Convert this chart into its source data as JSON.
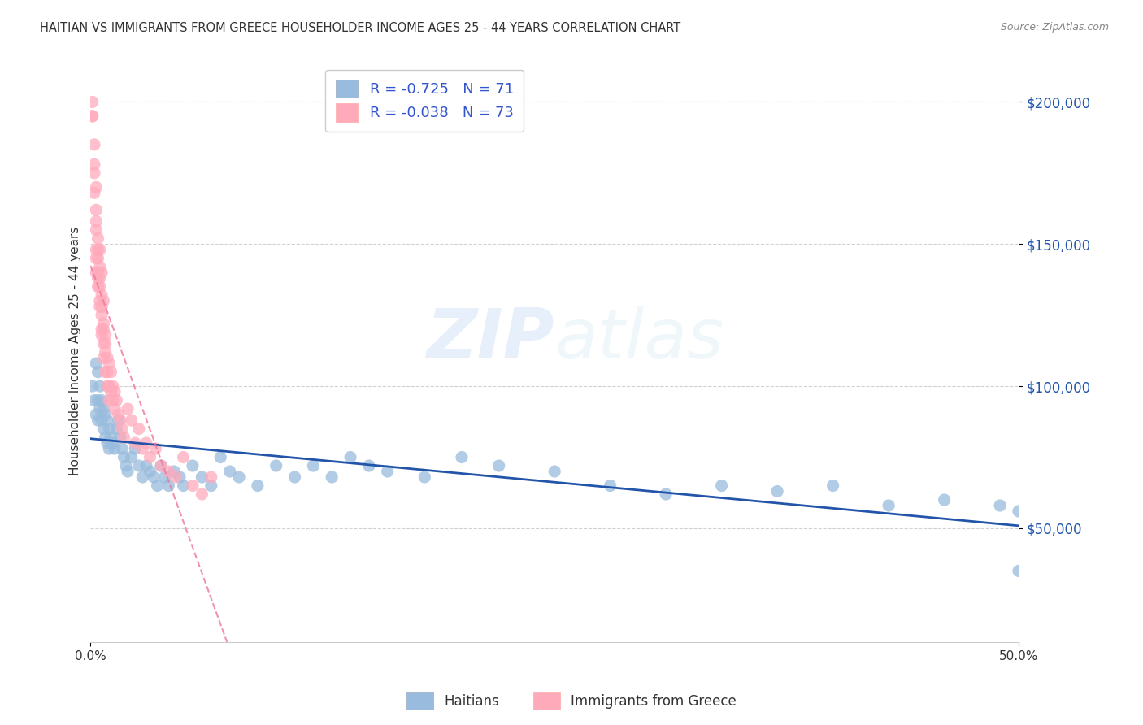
{
  "title": "HAITIAN VS IMMIGRANTS FROM GREECE HOUSEHOLDER INCOME AGES 25 - 44 YEARS CORRELATION CHART",
  "source": "Source: ZipAtlas.com",
  "ylabel": "Householder Income Ages 25 - 44 years",
  "watermark_zip": "ZIP",
  "watermark_atlas": "atlas",
  "legend_labels": [
    "Haitians",
    "Immigrants from Greece"
  ],
  "blue_R": "-0.725",
  "blue_N": "71",
  "pink_R": "-0.038",
  "pink_N": "73",
  "blue_color": "#99BBDD",
  "pink_color": "#FFAABB",
  "blue_line_color": "#2255AA",
  "pink_line_color": "#EE7799",
  "ytick_labels": [
    "$50,000",
    "$100,000",
    "$150,000",
    "$200,000"
  ],
  "ytick_values": [
    50000,
    100000,
    150000,
    200000
  ],
  "ymin": 10000,
  "ymax": 215000,
  "xmin": 0.0,
  "xmax": 0.5,
  "blue_scatter_x": [
    0.001,
    0.002,
    0.003,
    0.003,
    0.004,
    0.004,
    0.004,
    0.005,
    0.005,
    0.006,
    0.006,
    0.007,
    0.007,
    0.008,
    0.008,
    0.009,
    0.009,
    0.01,
    0.01,
    0.011,
    0.012,
    0.013,
    0.014,
    0.015,
    0.016,
    0.017,
    0.018,
    0.019,
    0.02,
    0.022,
    0.024,
    0.026,
    0.028,
    0.03,
    0.032,
    0.034,
    0.036,
    0.038,
    0.04,
    0.042,
    0.045,
    0.048,
    0.05,
    0.055,
    0.06,
    0.065,
    0.07,
    0.075,
    0.08,
    0.09,
    0.1,
    0.11,
    0.12,
    0.13,
    0.14,
    0.15,
    0.16,
    0.18,
    0.2,
    0.22,
    0.25,
    0.28,
    0.31,
    0.34,
    0.37,
    0.4,
    0.43,
    0.46,
    0.49,
    0.5,
    0.5
  ],
  "blue_scatter_y": [
    100000,
    95000,
    108000,
    90000,
    105000,
    95000,
    88000,
    100000,
    92000,
    95000,
    88000,
    92000,
    85000,
    90000,
    82000,
    88000,
    80000,
    85000,
    78000,
    82000,
    80000,
    78000,
    85000,
    88000,
    82000,
    78000,
    75000,
    72000,
    70000,
    75000,
    78000,
    72000,
    68000,
    72000,
    70000,
    68000,
    65000,
    72000,
    68000,
    65000,
    70000,
    68000,
    65000,
    72000,
    68000,
    65000,
    75000,
    70000,
    68000,
    65000,
    72000,
    68000,
    72000,
    68000,
    75000,
    72000,
    70000,
    68000,
    75000,
    72000,
    70000,
    65000,
    62000,
    65000,
    63000,
    65000,
    58000,
    60000,
    58000,
    56000,
    35000
  ],
  "pink_scatter_x": [
    0.001,
    0.001,
    0.001,
    0.002,
    0.002,
    0.002,
    0.002,
    0.003,
    0.003,
    0.003,
    0.003,
    0.003,
    0.003,
    0.003,
    0.004,
    0.004,
    0.004,
    0.004,
    0.004,
    0.004,
    0.005,
    0.005,
    0.005,
    0.005,
    0.005,
    0.005,
    0.006,
    0.006,
    0.006,
    0.006,
    0.006,
    0.006,
    0.007,
    0.007,
    0.007,
    0.007,
    0.007,
    0.008,
    0.008,
    0.008,
    0.008,
    0.009,
    0.009,
    0.009,
    0.01,
    0.01,
    0.01,
    0.011,
    0.011,
    0.012,
    0.012,
    0.013,
    0.013,
    0.014,
    0.015,
    0.016,
    0.017,
    0.018,
    0.02,
    0.022,
    0.024,
    0.026,
    0.028,
    0.03,
    0.032,
    0.035,
    0.038,
    0.042,
    0.046,
    0.05,
    0.055,
    0.06,
    0.065
  ],
  "pink_scatter_y": [
    195000,
    200000,
    195000,
    185000,
    175000,
    178000,
    168000,
    170000,
    162000,
    155000,
    148000,
    158000,
    145000,
    140000,
    152000,
    148000,
    140000,
    135000,
    145000,
    138000,
    148000,
    142000,
    135000,
    128000,
    138000,
    130000,
    140000,
    132000,
    125000,
    120000,
    128000,
    118000,
    130000,
    122000,
    115000,
    110000,
    120000,
    118000,
    112000,
    105000,
    115000,
    110000,
    105000,
    100000,
    108000,
    100000,
    95000,
    105000,
    98000,
    100000,
    95000,
    98000,
    92000,
    95000,
    90000,
    88000,
    85000,
    82000,
    92000,
    88000,
    80000,
    85000,
    78000,
    80000,
    75000,
    78000,
    72000,
    70000,
    68000,
    75000,
    65000,
    62000,
    68000
  ]
}
